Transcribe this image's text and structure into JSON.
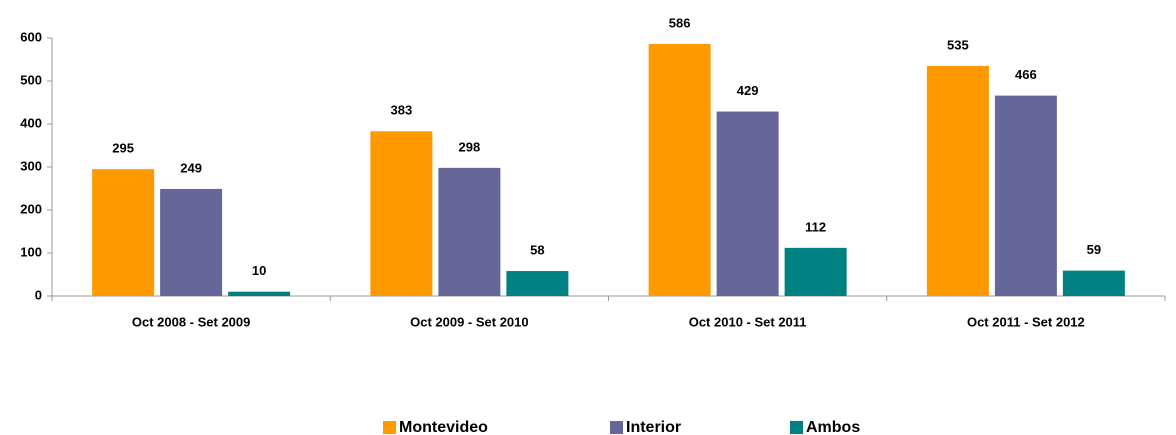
{
  "chart_data": {
    "type": "bar",
    "categories": [
      "Oct 2008 - Set 2009",
      "Oct 2009 - Set 2010",
      "Oct 2010 - Set 2011",
      "Oct 2011 - Set 2012"
    ],
    "series": [
      {
        "name": "Montevideo",
        "color": "#FF9900",
        "values": [
          295,
          383,
          586,
          535
        ]
      },
      {
        "name": "Interior",
        "color": "#666699",
        "values": [
          249,
          298,
          429,
          466
        ]
      },
      {
        "name": "Ambos",
        "color": "#008080",
        "values": [
          10,
          58,
          112,
          59
        ]
      }
    ],
    "ylim": [
      0,
      600
    ],
    "yticks": [
      0,
      100,
      200,
      300,
      400,
      500,
      600
    ],
    "grid": false,
    "legend": "bottom"
  }
}
